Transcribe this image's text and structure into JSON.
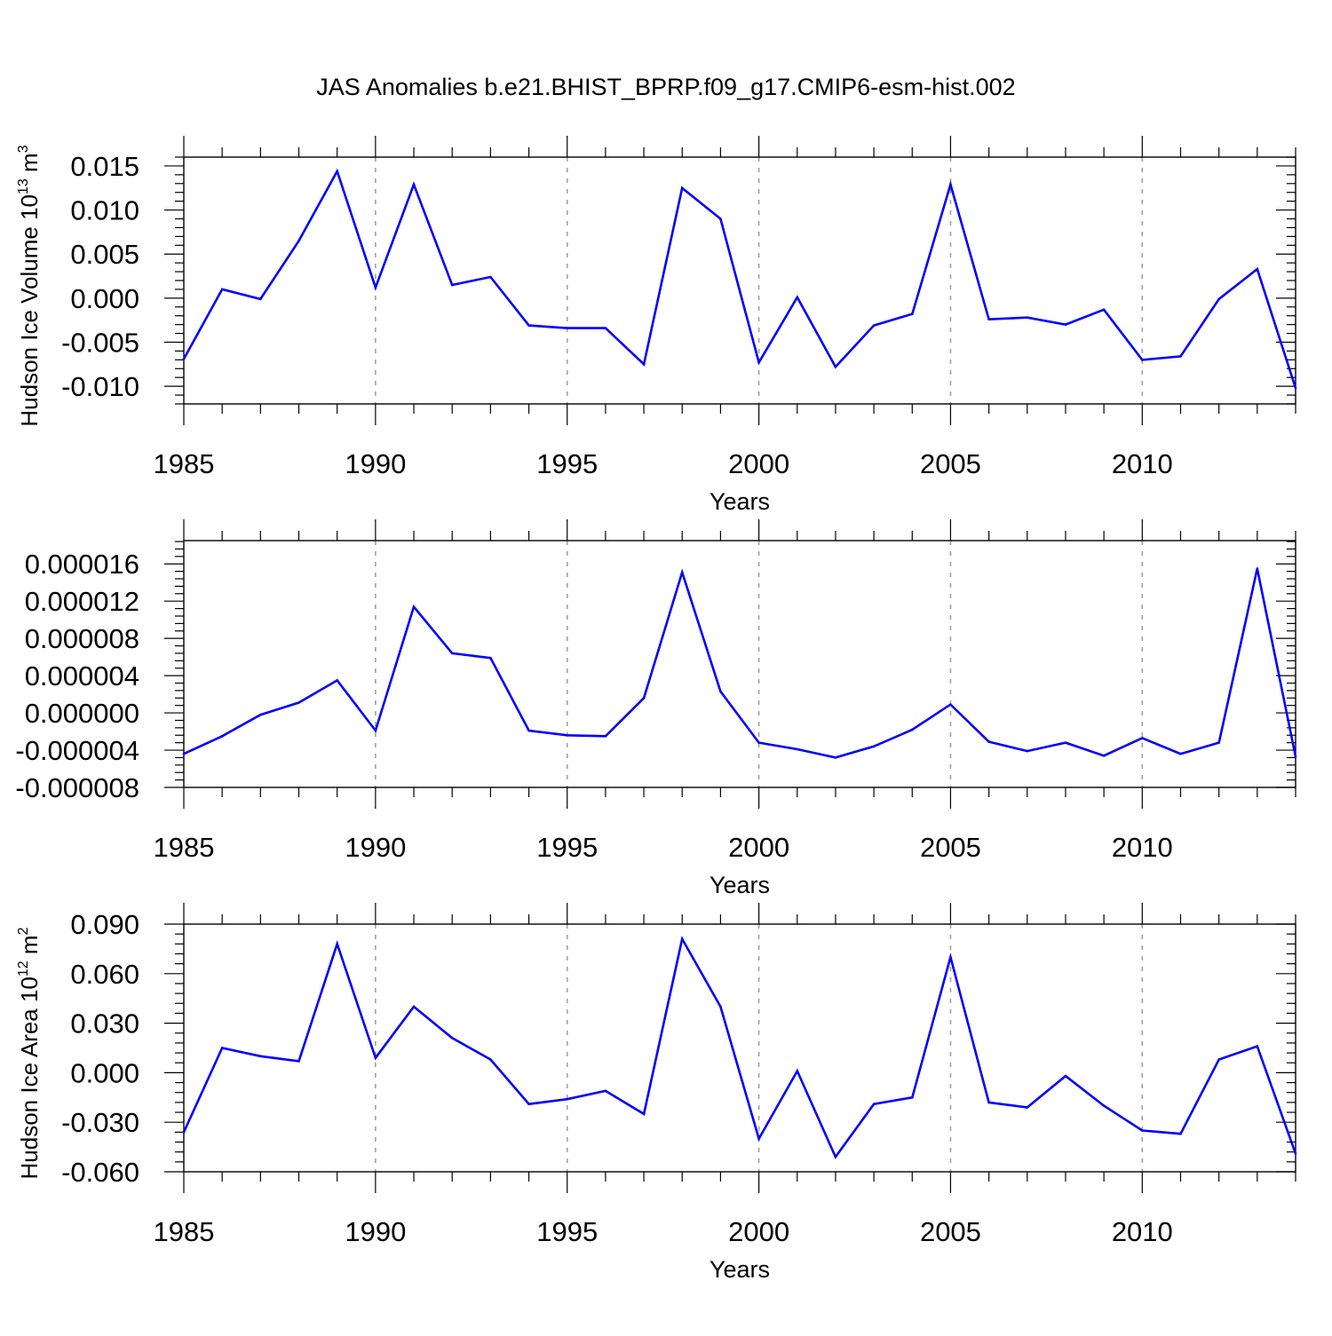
{
  "title": "JAS Anomalies b.e21.BHIST_BPRP.f09_g17.CMIP6-esm-hist.002",
  "colors": {
    "line": "#0000ff",
    "axis": "#000000",
    "grid": "#a0a0a0"
  },
  "chart_data": [
    {
      "type": "line",
      "ylabel": "Hudson Ice Volume",
      "ylabel_power": "10",
      "ylabel_exp": "13",
      "ylabel_unit": "m",
      "ylabel_unit_exp": "3",
      "xlabel": "Years",
      "xlim": [
        1985,
        2014
      ],
      "ylim": [
        -0.012,
        0.016
      ],
      "yticks": [
        -0.01,
        -0.005,
        0.0,
        0.005,
        0.01,
        0.015
      ],
      "ytick_labels": [
        "-0.010",
        "-0.005",
        "0.000",
        "0.005",
        "0.010",
        "0.015"
      ],
      "xticks": [
        1985,
        1990,
        1995,
        2000,
        2005,
        2010
      ],
      "xtick_labels": [
        "1985",
        "1990",
        "1995",
        "2000",
        "2005",
        "2010"
      ],
      "grid_x": [
        1990,
        1995,
        2000,
        2005,
        2010
      ],
      "x": [
        1985,
        1986,
        1987,
        1988,
        1989,
        1990,
        1991,
        1992,
        1993,
        1994,
        1995,
        1996,
        1997,
        1998,
        1999,
        2000,
        2001,
        2002,
        2003,
        2004,
        2005,
        2006,
        2007,
        2008,
        2009,
        2010,
        2011,
        2012,
        2013,
        2014
      ],
      "values": [
        -0.0069,
        0.001,
        -0.0001,
        0.0065,
        0.0144,
        0.0012,
        0.0129,
        0.0015,
        0.0024,
        -0.0031,
        -0.0034,
        -0.0034,
        -0.0075,
        0.0125,
        0.009,
        -0.0073,
        0.0001,
        -0.0078,
        -0.0031,
        -0.0018,
        0.0129,
        -0.0024,
        -0.0022,
        -0.003,
        -0.0013,
        -0.007,
        -0.0066,
        -0.0001,
        0.0033,
        -0.0102
      ]
    },
    {
      "type": "line",
      "ylabel": "",
      "xlabel": "Years",
      "xlim": [
        1985,
        2014
      ],
      "ylim": [
        -8e-06,
        1.85e-05
      ],
      "yticks": [
        -8e-06,
        -4e-06,
        0.0,
        4e-06,
        8e-06,
        1.2e-05,
        1.6e-05
      ],
      "ytick_labels": [
        "-0.000008",
        "-0.000004",
        "0.000000",
        "0.000004",
        "0.000008",
        "0.000012",
        "0.000016"
      ],
      "xticks": [
        1985,
        1990,
        1995,
        2000,
        2005,
        2010
      ],
      "xtick_labels": [
        "1985",
        "1990",
        "1995",
        "2000",
        "2005",
        "2010"
      ],
      "grid_x": [
        1990,
        1995,
        2000,
        2005,
        2010
      ],
      "x": [
        1985,
        1986,
        1987,
        1988,
        1989,
        1990,
        1991,
        1992,
        1993,
        1994,
        1995,
        1996,
        1997,
        1998,
        1999,
        2000,
        2001,
        2002,
        2003,
        2004,
        2005,
        2006,
        2007,
        2008,
        2009,
        2010,
        2011,
        2012,
        2013,
        2014
      ],
      "values": [
        -4.4e-06,
        -2.5e-06,
        -2e-07,
        1.1e-06,
        3.5e-06,
        -1.9e-06,
        1.14e-05,
        6.4e-06,
        5.9e-06,
        -1.9e-06,
        -2.4e-06,
        -2.5e-06,
        1.6e-06,
        1.51e-05,
        2.3e-06,
        -3.2e-06,
        -3.9e-06,
        -4.8e-06,
        -3.6e-06,
        -1.8e-06,
        9e-07,
        -3.1e-06,
        -4.1e-06,
        -3.2e-06,
        -4.6e-06,
        -2.7e-06,
        -4.4e-06,
        -3.2e-06,
        1.55e-05,
        -4.7e-06
      ]
    },
    {
      "type": "line",
      "ylabel": "Hudson Ice Area",
      "ylabel_power": "10",
      "ylabel_exp": "12",
      "ylabel_unit": "m",
      "ylabel_unit_exp": "2",
      "xlabel": "Years",
      "xlim": [
        1985,
        2014
      ],
      "ylim": [
        -0.06,
        0.09
      ],
      "yticks": [
        -0.06,
        -0.03,
        0.0,
        0.03,
        0.06,
        0.09
      ],
      "ytick_labels": [
        "-0.060",
        "-0.030",
        "0.000",
        "0.030",
        "0.060",
        "0.090"
      ],
      "xticks": [
        1985,
        1990,
        1995,
        2000,
        2005,
        2010
      ],
      "xtick_labels": [
        "1985",
        "1990",
        "1995",
        "2000",
        "2005",
        "2010"
      ],
      "grid_x": [
        1990,
        1995,
        2000,
        2005,
        2010
      ],
      "x": [
        1985,
        1986,
        1987,
        1988,
        1989,
        1990,
        1991,
        1992,
        1993,
        1994,
        1995,
        1996,
        1997,
        1998,
        1999,
        2000,
        2001,
        2002,
        2003,
        2004,
        2005,
        2006,
        2007,
        2008,
        2009,
        2010,
        2011,
        2012,
        2013,
        2014
      ],
      "values": [
        -0.036,
        0.015,
        0.01,
        0.007,
        0.078,
        0.009,
        0.04,
        0.021,
        0.008,
        -0.019,
        -0.016,
        -0.011,
        -0.025,
        0.081,
        0.04,
        -0.04,
        0.001,
        -0.051,
        -0.019,
        -0.015,
        0.07,
        -0.018,
        -0.021,
        -0.002,
        -0.02,
        -0.035,
        -0.037,
        0.008,
        0.016,
        -0.049
      ]
    }
  ]
}
